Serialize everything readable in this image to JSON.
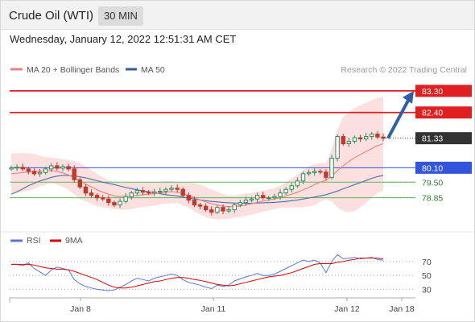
{
  "header": {
    "title": "Crude Oil (WTI)",
    "timeframe": "30 MIN"
  },
  "datetime": "Wednesday, January 12, 2022 12:51:31 AM CET",
  "colors": {
    "price_up": "#2e8b57",
    "price_down": "#c0392b",
    "ma20": "#f08080",
    "ma50": "#4a6fa5",
    "bollinger_fill": "#fbd5d5",
    "resistance": "#e02020",
    "current_price": "#333333",
    "pivot": "#3355dd",
    "support": "#5cb85c",
    "arrow": "#2f5faa",
    "rsi": "#5577dd",
    "rsi_ma": "#dd0000"
  },
  "chart_data": [
    {
      "type": "candlestick",
      "title": "Crude Oil (WTI)",
      "timeframe": "30 MIN",
      "legend": [
        {
          "name": "MA 20 + Bollinger Bands",
          "color": "#f08080"
        },
        {
          "name": "MA 50",
          "color": "#3a5c99"
        }
      ],
      "legend_placement": "top-left",
      "attribution": "Research © 2022 Trading Central",
      "x_tick_labels": [
        "Jan 8",
        "Jan 11",
        "Jan 12",
        "Jan 18"
      ],
      "ylim": [
        77.7,
        84.0
      ],
      "grid": false,
      "current_price": {
        "label": "81.33",
        "value": 81.33
      },
      "levels": [
        {
          "label": "83.30",
          "value": 83.3,
          "kind": "resistance"
        },
        {
          "label": "82.40",
          "value": 82.4,
          "kind": "resistance"
        },
        {
          "label": "80.10",
          "value": 80.1,
          "kind": "pivot"
        },
        {
          "label": "79.50",
          "value": 79.5,
          "kind": "support"
        },
        {
          "label": "78.85",
          "value": 78.85,
          "kind": "support"
        }
      ],
      "forecast_arrow": {
        "from": 81.33,
        "to": 83.3,
        "direction": "up"
      },
      "price_path": [
        80.1,
        80.12,
        80.05,
        79.95,
        79.85,
        79.9,
        80.05,
        80.18,
        80.08,
        80.15,
        80.05,
        79.6,
        79.3,
        79.05,
        78.95,
        78.85,
        78.8,
        78.65,
        78.55,
        78.7,
        78.9,
        79.05,
        79.15,
        79.08,
        79.05,
        79.1,
        79.12,
        79.2,
        79.25,
        79.2,
        78.95,
        78.75,
        78.55,
        78.5,
        78.35,
        78.25,
        78.45,
        78.3,
        78.35,
        78.55,
        78.65,
        78.75,
        78.8,
        78.95,
        78.85,
        78.85,
        78.9,
        79.05,
        79.2,
        79.35,
        79.55,
        79.85,
        79.9,
        79.95,
        79.92,
        79.7,
        80.5,
        81.4,
        81.1,
        81.2,
        81.35,
        81.3,
        81.4,
        81.5,
        81.38,
        81.33
      ],
      "ma20": [
        79.85,
        79.87,
        79.9,
        79.92,
        79.95,
        79.96,
        79.98,
        79.99,
        79.95,
        79.88,
        79.8,
        79.68,
        79.55,
        79.42,
        79.3,
        79.18,
        79.08,
        79.0,
        78.93,
        78.9,
        78.9,
        78.92,
        78.95,
        78.98,
        79.0,
        79.02,
        79.05,
        79.08,
        79.1,
        79.08,
        79.02,
        78.95,
        78.85,
        78.76,
        78.68,
        78.6,
        78.55,
        78.5,
        78.48,
        78.48,
        78.5,
        78.55,
        78.6,
        78.66,
        78.72,
        78.76,
        78.8,
        78.85,
        78.92,
        79.0,
        79.08,
        79.18,
        79.28,
        79.4,
        79.5,
        79.58,
        79.75,
        79.98,
        80.18,
        80.36,
        80.52,
        80.65,
        80.78,
        80.9,
        81.02,
        81.1
      ],
      "bollinger_upper": [
        80.7,
        80.7,
        80.72,
        80.7,
        80.68,
        80.6,
        80.55,
        80.52,
        80.5,
        80.45,
        80.42,
        80.38,
        80.3,
        80.15,
        80.0,
        79.85,
        79.7,
        79.58,
        79.5,
        79.48,
        79.48,
        79.48,
        79.5,
        79.52,
        79.52,
        79.52,
        79.52,
        79.55,
        79.55,
        79.5,
        79.48,
        79.48,
        79.45,
        79.4,
        79.3,
        79.2,
        79.1,
        79.0,
        78.95,
        78.95,
        78.98,
        79.02,
        79.05,
        79.1,
        79.15,
        79.2,
        79.25,
        79.35,
        79.5,
        79.65,
        79.82,
        80.0,
        80.15,
        80.25,
        80.3,
        80.3,
        80.9,
        81.7,
        82.2,
        82.4,
        82.6,
        82.7,
        82.8,
        82.9,
        83.0,
        83.05
      ],
      "bollinger_lower": [
        79.0,
        79.05,
        79.1,
        79.15,
        79.22,
        79.32,
        79.4,
        79.45,
        79.4,
        79.3,
        79.18,
        78.98,
        78.8,
        78.7,
        78.6,
        78.5,
        78.45,
        78.42,
        78.38,
        78.35,
        78.35,
        78.38,
        78.42,
        78.45,
        78.5,
        78.52,
        78.58,
        78.6,
        78.62,
        78.62,
        78.55,
        78.45,
        78.3,
        78.15,
        78.05,
        77.98,
        77.95,
        77.95,
        77.98,
        78.02,
        78.05,
        78.1,
        78.15,
        78.2,
        78.28,
        78.32,
        78.38,
        78.42,
        78.45,
        78.45,
        78.45,
        78.45,
        78.48,
        78.55,
        78.68,
        78.8,
        78.7,
        78.45,
        78.3,
        78.25,
        78.3,
        78.45,
        78.65,
        78.85,
        79.05,
        79.15
      ],
      "ma50": [
        79.0,
        79.1,
        79.22,
        79.35,
        79.45,
        79.55,
        79.62,
        79.7,
        79.75,
        79.78,
        79.78,
        79.76,
        79.72,
        79.68,
        79.62,
        79.56,
        79.5,
        79.45,
        79.4,
        79.34,
        79.28,
        79.23,
        79.18,
        79.14,
        79.1,
        79.06,
        79.02,
        78.98,
        78.95,
        78.92,
        78.88,
        78.84,
        78.8,
        78.76,
        78.73,
        78.7,
        78.68,
        78.66,
        78.64,
        78.63,
        78.62,
        78.62,
        78.62,
        78.63,
        78.64,
        78.65,
        78.66,
        78.68,
        78.7,
        78.73,
        78.76,
        78.8,
        78.84,
        78.88,
        78.93,
        78.98,
        79.05,
        79.13,
        79.22,
        79.31,
        79.4,
        79.48,
        79.57,
        79.66,
        79.73,
        79.78
      ]
    },
    {
      "type": "line",
      "legend": [
        {
          "name": "RSI",
          "color": "#5577dd"
        },
        {
          "name": "9MA",
          "color": "#dd0000"
        }
      ],
      "legend_placement": "top-left",
      "y_tick_labels": [
        "70",
        "50",
        "30"
      ],
      "ylim": [
        20,
        85
      ],
      "reference_lines": [
        70,
        50,
        30
      ],
      "series": [
        {
          "name": "RSI",
          "values": [
            66,
            66,
            64,
            68,
            60,
            55,
            50,
            58,
            62,
            60,
            58,
            44,
            38,
            34,
            32,
            30,
            29,
            28,
            29,
            33,
            37,
            42,
            46,
            44,
            42,
            46,
            48,
            50,
            52,
            50,
            44,
            40,
            38,
            36,
            33,
            31,
            36,
            34,
            36,
            42,
            45,
            48,
            50,
            53,
            50,
            50,
            52,
            56,
            60,
            64,
            68,
            72,
            70,
            72,
            68,
            54,
            70,
            80,
            74,
            75,
            76,
            74,
            75,
            76,
            73,
            72
          ]
        },
        {
          "name": "9MA",
          "values": [
            66,
            66,
            66,
            66,
            65,
            63,
            61,
            60,
            59,
            59,
            58,
            56,
            53,
            50,
            47,
            44,
            40,
            36,
            33,
            32,
            32,
            33,
            35,
            37,
            39,
            41,
            42,
            44,
            46,
            47,
            47,
            46,
            44,
            43,
            41,
            39,
            37,
            36,
            35,
            36,
            38,
            40,
            42,
            44,
            46,
            48,
            49,
            50,
            52,
            54,
            57,
            60,
            63,
            66,
            67,
            67,
            67,
            69,
            70,
            72,
            73,
            75,
            75,
            75,
            75,
            74
          ]
        }
      ]
    }
  ]
}
